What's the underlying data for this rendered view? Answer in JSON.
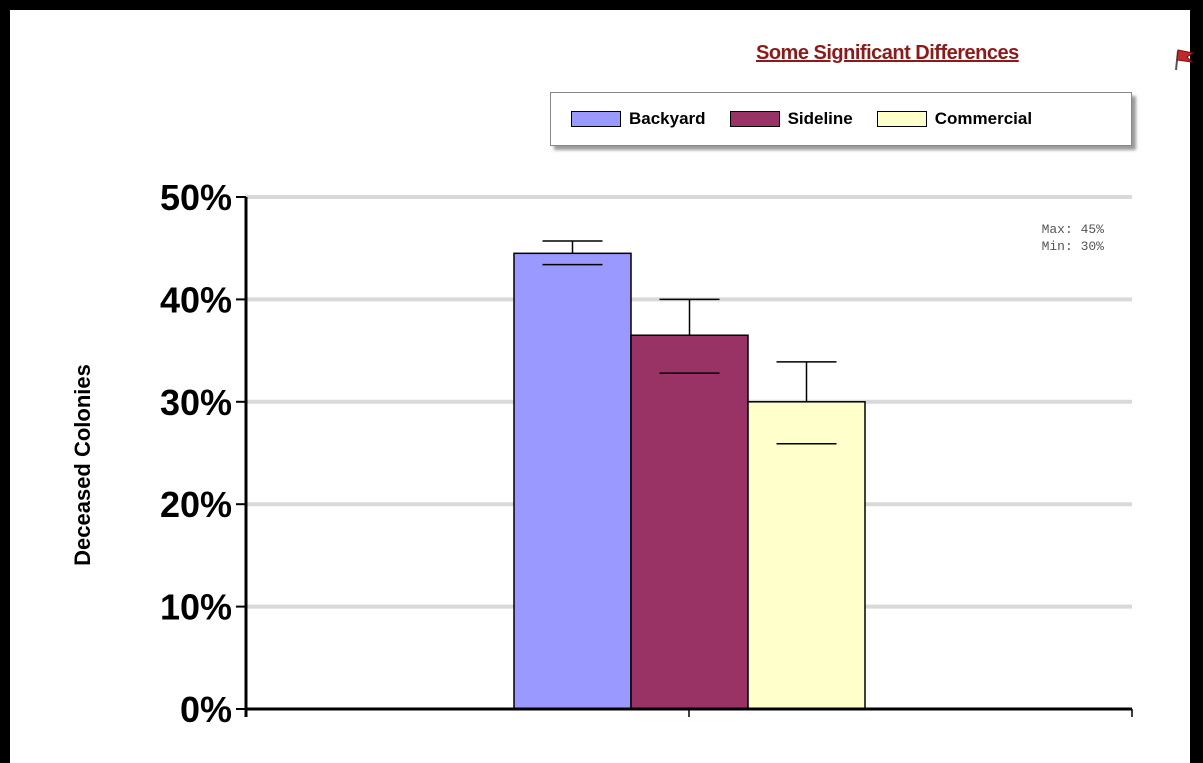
{
  "header": {
    "link_text": "Some Significant Differences",
    "flag_icon": "red-flag-icon"
  },
  "colors": {
    "backyard": "#9999ff",
    "sideline": "#993366",
    "commercial": "#ffffcc",
    "link": "#8b1a1a",
    "grid": "#d9d9d9"
  },
  "chart_data": {
    "type": "bar",
    "ylabel": "Deceased Colonies",
    "ylim": [
      0,
      50
    ],
    "yticks": [
      "0%",
      "10%",
      "20%",
      "30%",
      "40%",
      "50%"
    ],
    "grid": true,
    "legend_position": "top-right",
    "series": [
      {
        "name": "Backyard",
        "value": 44.5,
        "err_high": 45.7,
        "err_low": 43.4,
        "color": "#9999ff"
      },
      {
        "name": "Sideline",
        "value": 36.5,
        "err_high": 40.0,
        "err_low": 32.8,
        "color": "#993366"
      },
      {
        "name": "Commercial",
        "value": 30.0,
        "err_high": 33.9,
        "err_low": 25.9,
        "color": "#ffffcc"
      }
    ],
    "annotation": {
      "max": "Max: 45%",
      "min": "Min: 30%"
    }
  }
}
